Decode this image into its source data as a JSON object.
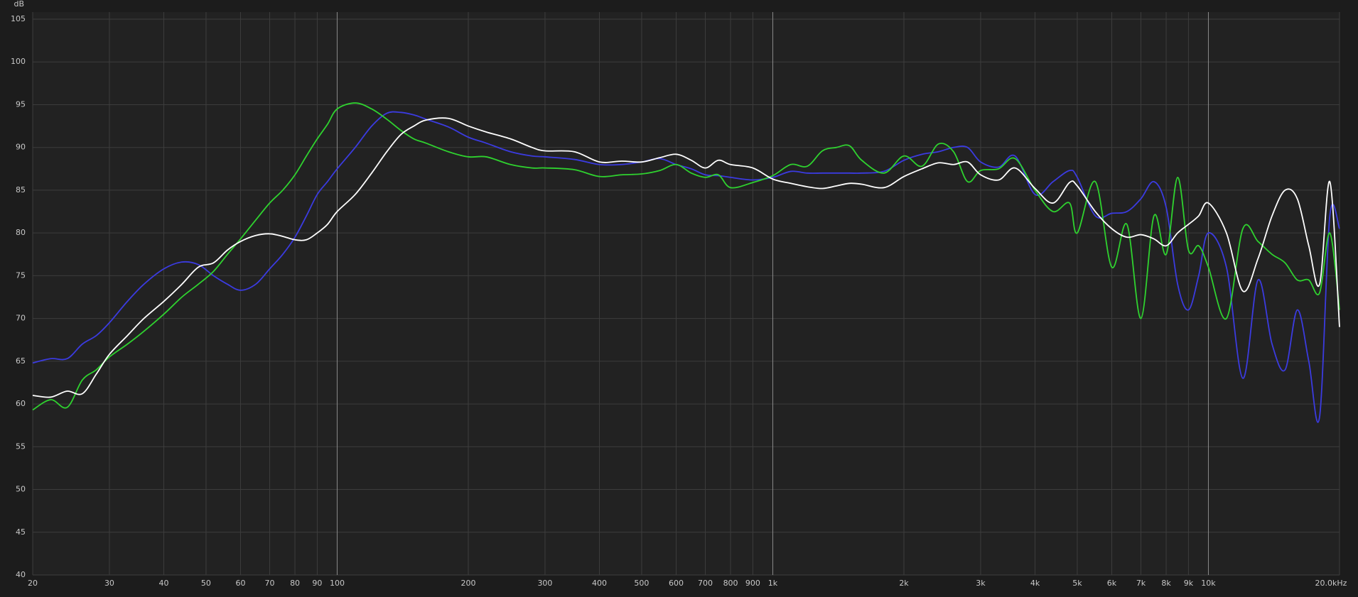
{
  "chart_data": {
    "type": "line",
    "y_label": "dB",
    "x_log": true,
    "grid": true,
    "x": [
      20,
      22,
      24,
      26,
      28,
      30,
      33,
      36,
      40,
      44,
      48,
      52,
      56,
      60,
      65,
      70,
      75,
      80,
      85,
      90,
      95,
      100,
      110,
      120,
      130,
      140,
      150,
      160,
      180,
      200,
      220,
      250,
      280,
      300,
      350,
      400,
      450,
      500,
      550,
      600,
      650,
      700,
      750,
      800,
      900,
      1000,
      1100,
      1200,
      1300,
      1400,
      1500,
      1600,
      1800,
      2000,
      2200,
      2400,
      2600,
      2800,
      3000,
      3300,
      3600,
      4000,
      4400,
      4800,
      5000,
      5500,
      6000,
      6500,
      7000,
      7500,
      8000,
      8500,
      9000,
      9500,
      10000,
      11000,
      12000,
      13000,
      14000,
      15000,
      16000,
      17000,
      18000,
      19000,
      20000
    ],
    "series": [
      {
        "color": "#3b3be0",
        "values": [
          64.8,
          65.3,
          65.3,
          67,
          68,
          69.5,
          72,
          74,
          75.8,
          76.6,
          76.3,
          75,
          74,
          73.3,
          74,
          75.8,
          77.5,
          79.5,
          82,
          84.5,
          86,
          87.5,
          90,
          92.5,
          94,
          94.1,
          93.8,
          93.3,
          92.4,
          91.2,
          90.5,
          89.5,
          89,
          88.9,
          88.6,
          88,
          88,
          88.3,
          88.7,
          88,
          87.5,
          86.8,
          86.7,
          86.5,
          86.2,
          86.5,
          87.2,
          87,
          87,
          87,
          87,
          87,
          87.2,
          88.5,
          89.2,
          89.5,
          90,
          90,
          88.3,
          87.7,
          89,
          84.5,
          86,
          87.3,
          86.5,
          82,
          82.3,
          82.5,
          84,
          86,
          83,
          74,
          71,
          75,
          80,
          76,
          63,
          74.5,
          67,
          64,
          71,
          65,
          58.5,
          82,
          80.5
        ]
      },
      {
        "color": "#2fd22f",
        "values": [
          59.3,
          60.5,
          59.6,
          62.8,
          64,
          65.5,
          67,
          68.5,
          70.5,
          72.5,
          74,
          75.5,
          77.5,
          79.3,
          81.5,
          83.5,
          85,
          86.8,
          89,
          91,
          92.7,
          94.5,
          95.2,
          94.5,
          93.3,
          92,
          91,
          90.5,
          89.5,
          88.9,
          88.9,
          88,
          87.6,
          87.6,
          87.4,
          86.6,
          86.8,
          86.9,
          87.3,
          88,
          87,
          86.5,
          86.8,
          85.3,
          85.9,
          86.7,
          88,
          87.8,
          89.6,
          90,
          90.2,
          88.5,
          87,
          89,
          87.8,
          90.4,
          89.5,
          86,
          87.3,
          87.5,
          88.7,
          85,
          82.5,
          83.5,
          80,
          86,
          76,
          81,
          70,
          82,
          77.5,
          86.5,
          78,
          78.5,
          76,
          70,
          80.5,
          79,
          77.5,
          76.5,
          74.5,
          74.5,
          73,
          80,
          71
        ]
      },
      {
        "color": "#ffffff",
        "values": [
          61,
          60.8,
          61.5,
          61.2,
          63.5,
          65.8,
          68,
          70,
          72,
          74,
          76,
          76.5,
          78,
          79,
          79.7,
          79.9,
          79.6,
          79.2,
          79.2,
          80,
          81,
          82.5,
          84.5,
          87,
          89.5,
          91.5,
          92.5,
          93.2,
          93.4,
          92.5,
          91.8,
          91,
          90,
          89.6,
          89.5,
          88.3,
          88.4,
          88.3,
          88.8,
          89.2,
          88.5,
          87.6,
          88.5,
          88,
          87.6,
          86.3,
          85.8,
          85.4,
          85.2,
          85.5,
          85.8,
          85.7,
          85.3,
          86.6,
          87.5,
          88.2,
          88,
          88.3,
          86.8,
          86.2,
          87.6,
          85.2,
          83.5,
          85.9,
          85.5,
          82.5,
          80.5,
          79.5,
          79.8,
          79.3,
          78.5,
          80,
          81,
          82,
          83.5,
          80,
          73.2,
          77,
          82,
          85,
          84,
          78.5,
          74,
          86,
          69
        ]
      }
    ],
    "xlim": [
      20,
      20000
    ],
    "xticks": [
      20,
      30,
      40,
      50,
      60,
      70,
      80,
      90,
      100,
      200,
      300,
      400,
      500,
      600,
      700,
      800,
      900,
      {
        "value": 1000,
        "label": "1k"
      },
      {
        "value": 2000,
        "label": "2k"
      },
      {
        "value": 3000,
        "label": "3k"
      },
      {
        "value": 4000,
        "label": "4k"
      },
      {
        "value": 5000,
        "label": "5k"
      },
      {
        "value": 6000,
        "label": "6k"
      },
      {
        "value": 7000,
        "label": "7k"
      },
      {
        "value": 8000,
        "label": "8k"
      },
      {
        "value": 9000,
        "label": "9k"
      },
      {
        "value": 10000,
        "label": "10k"
      },
      {
        "value": 20000,
        "label": "20.0kHz"
      }
    ],
    "major_xticks": [
      100,
      1000,
      10000
    ],
    "ylim": [
      40,
      105
    ],
    "yticks": [
      40,
      45,
      50,
      55,
      60,
      65,
      70,
      75,
      80,
      85,
      90,
      95,
      100,
      105
    ]
  }
}
